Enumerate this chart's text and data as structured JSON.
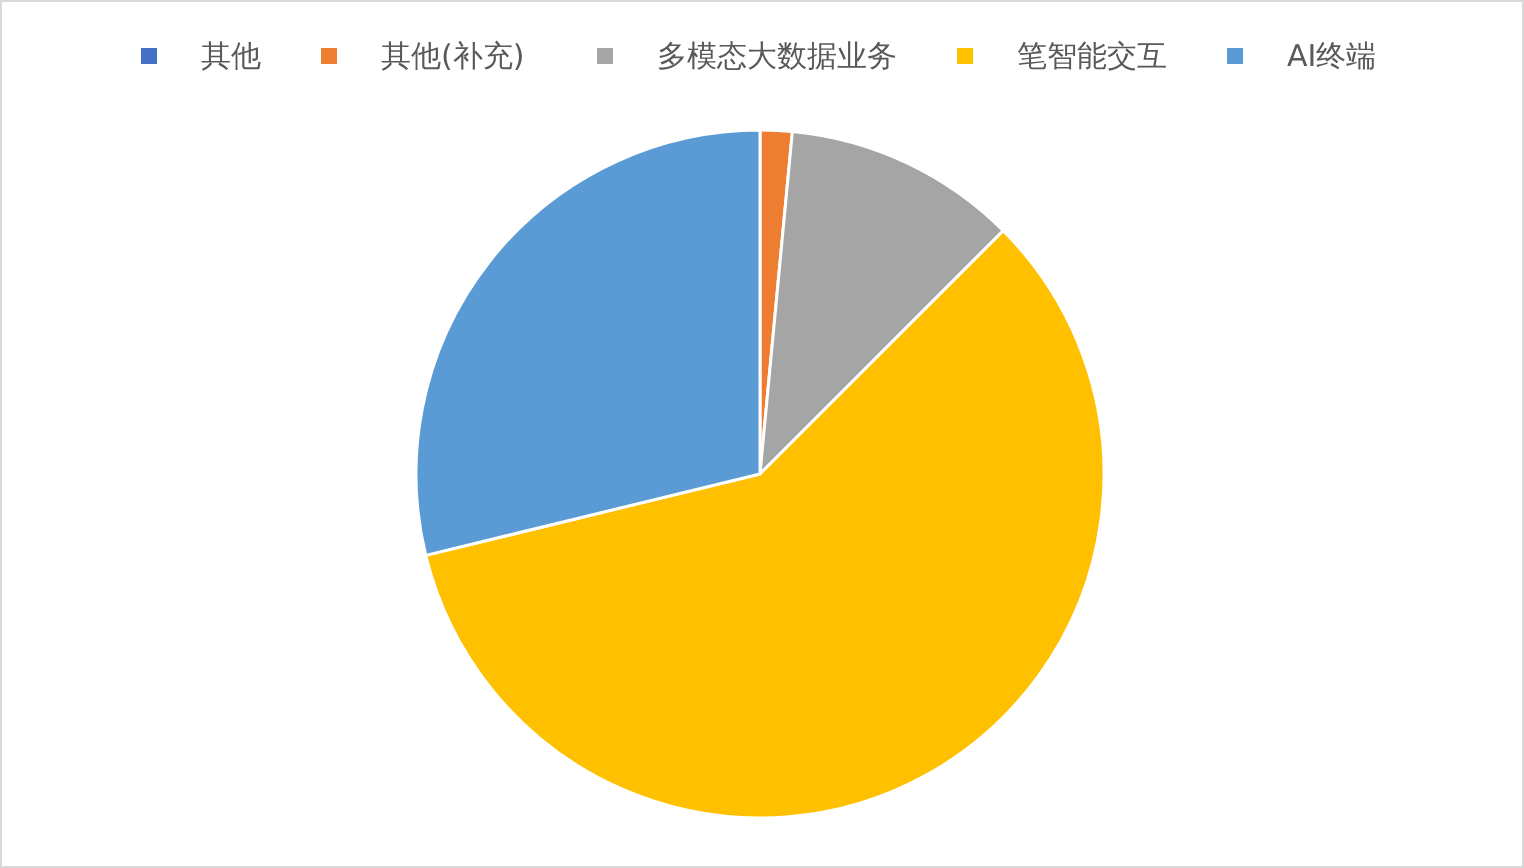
{
  "chart_data": {
    "type": "pie",
    "categories": [
      "其他",
      "其他(补充)",
      "多模态大数据业务",
      "笔智能交互",
      "AI终端"
    ],
    "values": [
      0,
      1.5,
      11,
      58.7,
      28.8
    ],
    "colors": [
      "#4472c4",
      "#ed7d31",
      "#a5a5a5",
      "#ffc000",
      "#5b9bd5"
    ],
    "legend": "top"
  }
}
